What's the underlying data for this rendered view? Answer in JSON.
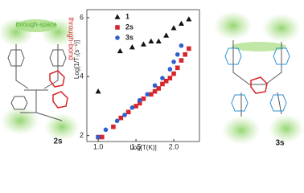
{
  "chart_data": {
    "type": "scatter",
    "xlabel": "Log[T(K)]",
    "ylabel": "Log[1/T₁(s⁻¹)]",
    "xlim": [
      0.85,
      2.34
    ],
    "ylim": [
      1.8,
      6.27
    ],
    "xticks": [
      {
        "value": 1,
        "label": "1.0"
      },
      {
        "value": 1.5,
        "label": "1.5"
      },
      {
        "value": 2,
        "label": "2.0"
      }
    ],
    "yticks": [
      2,
      4,
      6
    ],
    "legend": "upper left",
    "series": [
      {
        "name": "1",
        "color": "#111111",
        "marker": "triangle",
        "x": [
          1.0,
          1.29,
          1.45,
          1.6,
          1.7,
          1.8,
          1.9,
          2.0,
          2.1,
          2.2
        ],
        "values": [
          3.5,
          4.87,
          5.0,
          5.1,
          5.2,
          5.2,
          5.4,
          5.65,
          5.8,
          5.95
        ]
      },
      {
        "name": "2s",
        "color": "#d7262b",
        "marker": "square",
        "x": [
          1.0,
          1.05,
          1.2,
          1.3,
          1.4,
          1.5,
          1.55,
          1.6,
          1.7,
          1.75,
          1.8,
          1.85,
          1.9,
          1.95,
          2.0,
          2.05,
          2.1,
          2.15,
          2.2
        ],
        "values": [
          1.95,
          1.95,
          2.3,
          2.6,
          2.8,
          3.0,
          3.1,
          3.25,
          3.4,
          3.5,
          3.6,
          3.75,
          3.85,
          3.95,
          4.1,
          4.3,
          4.55,
          4.75,
          4.95
        ]
      },
      {
        "name": "3s",
        "color": "#2f5fd0",
        "marker": "circle",
        "x": [
          1.0,
          1.1,
          1.25,
          1.35,
          1.45,
          1.55,
          1.65,
          1.75,
          1.85,
          1.95,
          2.0,
          2.05,
          2.1
        ],
        "values": [
          1.95,
          2.2,
          2.5,
          2.7,
          2.95,
          3.2,
          3.4,
          3.7,
          3.95,
          4.25,
          4.5,
          4.75,
          5.05
        ]
      }
    ]
  },
  "annotations": {
    "through_space": "through-space",
    "through_bond": "through-bond",
    "left_compound": "2s",
    "right_compound": "3s"
  }
}
